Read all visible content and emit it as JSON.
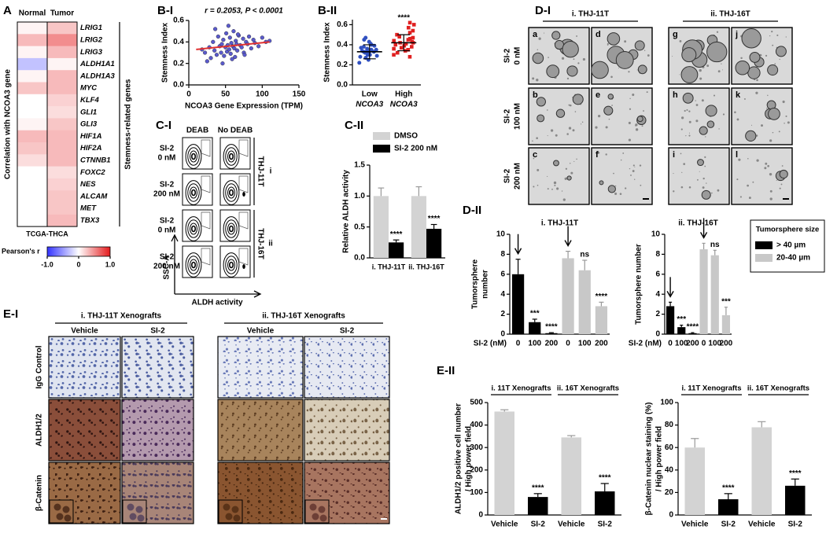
{
  "panel_labels": [
    "A",
    "B-I",
    "B-II",
    "C-I",
    "C-II",
    "D-I",
    "D-II",
    "E-I",
    "E-II"
  ],
  "chart_data": [
    {
      "type": "heatmap",
      "columns": [
        "Normal",
        "Tumor"
      ],
      "rows": [
        "LRIG1",
        "LRIG2",
        "LRIG3",
        "ALDH1A1",
        "ALDH1A3",
        "MYC",
        "KLF4",
        "GLI1",
        "GLI3",
        "HIF1A",
        "HIF2A",
        "CTNNB1",
        "FOXC2",
        "NES",
        "ALCAM",
        "MET",
        "TBX3"
      ],
      "values": [
        [
          0.05,
          0.25
        ],
        [
          0.3,
          0.5
        ],
        [
          0.05,
          0.3
        ],
        [
          -0.3,
          0.05
        ],
        [
          0.05,
          0.3
        ],
        [
          0.25,
          0.3
        ],
        [
          0,
          0.2
        ],
        [
          0,
          0.15
        ],
        [
          0.05,
          0.25
        ],
        [
          0.3,
          0.3
        ],
        [
          0.25,
          0.3
        ],
        [
          0.15,
          0.3
        ],
        [
          0,
          0.15
        ],
        [
          0,
          0.2
        ],
        [
          0,
          0.25
        ],
        [
          0,
          0.25
        ],
        [
          0,
          0.3
        ]
      ],
      "ylabel": "Correlation with NCOA3 gene",
      "bracket_label": "Stemness-related genes",
      "xlabel": "TCGA-THCA",
      "colorbar_label": "Pearson's r",
      "clim": [
        -1,
        1
      ],
      "cticks": [
        {
          "value": -1,
          "label": "-1.0"
        },
        0,
        {
          "value": 1,
          "label": "1.0"
        }
      ],
      "colors": [
        "#3333ff",
        "#ffffff",
        "#e41a1c"
      ]
    },
    {
      "type": "scatter",
      "title": "r = 0.2053, P < 0.0001",
      "xlabel": "NCOA3 Gene Expression (TPM)",
      "ylabel": "Stemness Index",
      "x": [
        22,
        28,
        30,
        33,
        35,
        38,
        40,
        42,
        44,
        45,
        47,
        48,
        50,
        51,
        52,
        53,
        55,
        56,
        57,
        58,
        60,
        61,
        62,
        63,
        64,
        65,
        66,
        68,
        70,
        72,
        74,
        75,
        78,
        80,
        82,
        85,
        88,
        90,
        95,
        100,
        105,
        110,
        18,
        25,
        36,
        46,
        54,
        59,
        67,
        76
      ],
      "y": [
        0.3,
        0.35,
        0.25,
        0.4,
        0.32,
        0.28,
        0.45,
        0.36,
        0.3,
        0.38,
        0.42,
        0.27,
        0.35,
        0.48,
        0.31,
        0.37,
        0.33,
        0.44,
        0.29,
        0.39,
        0.36,
        0.5,
        0.34,
        0.26,
        0.41,
        0.38,
        0.32,
        0.46,
        0.37,
        0.35,
        0.43,
        0.3,
        0.4,
        0.38,
        0.45,
        0.34,
        0.42,
        0.39,
        0.36,
        0.44,
        0.4,
        0.41,
        0.33,
        0.22,
        0.52,
        0.2,
        0.55,
        0.24,
        0.47,
        0.28
      ],
      "color": "#5a5acc",
      "fit": {
        "x": [
          10,
          110
        ],
        "y": [
          0.33,
          0.4
        ],
        "color": "#e03030"
      },
      "xlim": [
        0,
        150
      ],
      "xticks": [
        0,
        50,
        100,
        150
      ],
      "ylim": [
        0,
        0.6
      ],
      "yticks": [
        {
          "value": 0,
          "label": "0.0"
        },
        0.2,
        0.4,
        0.6
      ]
    },
    {
      "type": "strip",
      "ylabel": "Stemness Index",
      "categories": [
        [
          "Low",
          "NCOA3"
        ],
        [
          "High",
          "NCOA3"
        ]
      ],
      "groups": [
        {
          "values": [
            0.22,
            0.25,
            0.27,
            0.28,
            0.29,
            0.3,
            0.3,
            0.31,
            0.32,
            0.32,
            0.33,
            0.33,
            0.34,
            0.34,
            0.35,
            0.35,
            0.36,
            0.37,
            0.38,
            0.39,
            0.4,
            0.41,
            0.43,
            0.45,
            0.47
          ],
          "color": "#3050c0",
          "marker": "circle",
          "mean": 0.33,
          "sd": 0.07
        },
        {
          "values": [
            0.28,
            0.3,
            0.32,
            0.34,
            0.35,
            0.36,
            0.37,
            0.38,
            0.39,
            0.4,
            0.41,
            0.42,
            0.42,
            0.43,
            0.44,
            0.45,
            0.46,
            0.47,
            0.48,
            0.5,
            0.52,
            0.54,
            0.57,
            0.6,
            0.62
          ],
          "color": "#e02020",
          "marker": "square",
          "mean": 0.42,
          "sd": 0.08
        }
      ],
      "significance": [
        null,
        "****"
      ],
      "ylim": [
        0,
        0.65
      ],
      "yticks": [
        {
          "value": 0,
          "label": "0.0"
        },
        0.2,
        0.4,
        0.6
      ]
    },
    {
      "type": "bar",
      "ylabel": "Relative ALDH activity",
      "categories": [
        "i. THJ-11T",
        "ii. THJ-16T"
      ],
      "series": [
        {
          "name": "DMSO",
          "color": "#d3d3d3",
          "values": [
            1,
            1
          ],
          "errors": [
            0.13,
            0.15
          ]
        },
        {
          "name": "SI-2 200 nM",
          "color": "#000000",
          "values": [
            0.25,
            0.47
          ],
          "errors": [
            0.04,
            0.07
          ],
          "significance": [
            "****",
            "****"
          ]
        }
      ],
      "ylim": [
        0,
        1.5
      ],
      "yticks": [
        {
          "value": 0,
          "label": "0.0"
        },
        0.5,
        {
          "value": 1,
          "label": "1.0"
        },
        1.5
      ],
      "legend": "top"
    },
    {
      "type": "bar",
      "title": "i. THJ-11T",
      "ylabel": [
        "Tumorsphere",
        "number"
      ],
      "xlabel": "SI-2 (nM)",
      "categories": [
        "0",
        "100",
        "200",
        "0",
        "100",
        "200"
      ],
      "series": [
        {
          "color": "#000000",
          "values": [
            6,
            1.2,
            0.1,
            null,
            null,
            null
          ],
          "errors": [
            1.5,
            0.3,
            0.05,
            null,
            null,
            null
          ],
          "significance": [
            null,
            "***",
            "****",
            null,
            null,
            null
          ]
        },
        {
          "color": "#c8c8c8",
          "values": [
            null,
            null,
            null,
            7.6,
            6.4,
            2.8
          ],
          "errors": [
            null,
            null,
            null,
            0.7,
            1,
            0.4
          ],
          "significance": [
            null,
            null,
            null,
            null,
            "ns",
            "****"
          ]
        }
      ],
      "ylim": [
        0,
        10
      ],
      "yticks": [
        0,
        2,
        4,
        6,
        8,
        10
      ]
    },
    {
      "type": "bar",
      "title": "ii. THJ-16T",
      "ylabel": "Tumorsphere number",
      "xlabel": "SI-2 (nM)",
      "categories": [
        "0",
        "100",
        "200",
        "0",
        "100",
        "200"
      ],
      "series": [
        {
          "name": "> 40 µm",
          "color": "#000000",
          "values": [
            2.8,
            0.7,
            0.1,
            null,
            null,
            null
          ],
          "errors": [
            0.4,
            0.2,
            0.05,
            null,
            null,
            null
          ],
          "significance": [
            null,
            "***",
            "****",
            null,
            null,
            null
          ]
        },
        {
          "name": "20-40 µm",
          "color": "#c8c8c8",
          "values": [
            null,
            null,
            null,
            8.5,
            7.9,
            1.9
          ],
          "errors": [
            null,
            null,
            null,
            0.6,
            0.5,
            0.8
          ],
          "significance": [
            null,
            null,
            null,
            null,
            "ns",
            "***"
          ]
        }
      ],
      "ylim": [
        0,
        10
      ],
      "yticks": [
        0,
        2,
        4,
        6,
        8,
        10
      ],
      "legend": "right",
      "legend_title": "Tumorsphere size"
    },
    {
      "type": "bar",
      "group_labels": [
        "i. 11T Xenografts",
        "ii. 16T Xenografts"
      ],
      "ylabel": [
        "ALDH1/2 positive cell number",
        "/ High power field"
      ],
      "categories": [
        "Vehicle",
        "SI-2",
        "Vehicle",
        "SI-2"
      ],
      "values": [
        460,
        80,
        345,
        105
      ],
      "errors": [
        8,
        15,
        8,
        35
      ],
      "colors": [
        "#d3d3d3",
        "#000000",
        "#d3d3d3",
        "#000000"
      ],
      "significance": [
        null,
        "****",
        null,
        "****"
      ],
      "ylim": [
        0,
        500
      ],
      "yticks": [
        0,
        100,
        200,
        300,
        400,
        500
      ]
    },
    {
      "type": "bar",
      "group_labels": [
        "i. 11T Xenografts",
        "ii. 16T Xenografts"
      ],
      "ylabel": [
        "β-Catenin nuclear staining (%)",
        "/ High power field"
      ],
      "categories": [
        "Vehicle",
        "SI-2",
        "Vehicle",
        "SI-2"
      ],
      "values": [
        60,
        14,
        78,
        26
      ],
      "errors": [
        8,
        5,
        5,
        6
      ],
      "colors": [
        "#d3d3d3",
        "#000000",
        "#d3d3d3",
        "#000000"
      ],
      "significance": [
        null,
        "****",
        null,
        "****"
      ],
      "ylim": [
        0,
        100
      ],
      "yticks": [
        0,
        20,
        40,
        60,
        80,
        100
      ]
    }
  ],
  "flow": {
    "columns": [
      "DEAB",
      "No DEAB"
    ],
    "rows": [
      [
        "SI-2",
        "0 nM"
      ],
      [
        "SI-2",
        "200 nM"
      ],
      [
        "SI-2",
        "0 nM"
      ],
      [
        "SI-2",
        "200 nM"
      ]
    ],
    "groups": [
      {
        "name": "THJ-11T",
        "numeral": "i"
      },
      {
        "name": "THJ-16T",
        "numeral": "ii"
      }
    ],
    "ylabel": "SSC-A",
    "xlabel": "ALDH activity"
  },
  "spheres": {
    "columns": [
      "i. THJ-11T",
      "ii. THJ-16T"
    ],
    "rows": [
      [
        "SI-2",
        "0 nM"
      ],
      [
        "SI-2",
        "100 nM"
      ],
      [
        "SI-2",
        "200 nM"
      ]
    ],
    "letters": [
      [
        "a",
        "d",
        "g",
        "j"
      ],
      [
        "b",
        "e",
        "h",
        "k"
      ],
      [
        "c",
        "f",
        "i",
        "l"
      ]
    ]
  },
  "ihc": {
    "groups": [
      "i. THJ-11T Xenografts",
      "ii. THJ-16T Xenografts"
    ],
    "columns": [
      "Vehicle",
      "SI-2",
      "Vehicle",
      "SI-2"
    ],
    "rows": [
      "IgG Control",
      "ALDH1/2",
      "β-Catenin"
    ]
  }
}
